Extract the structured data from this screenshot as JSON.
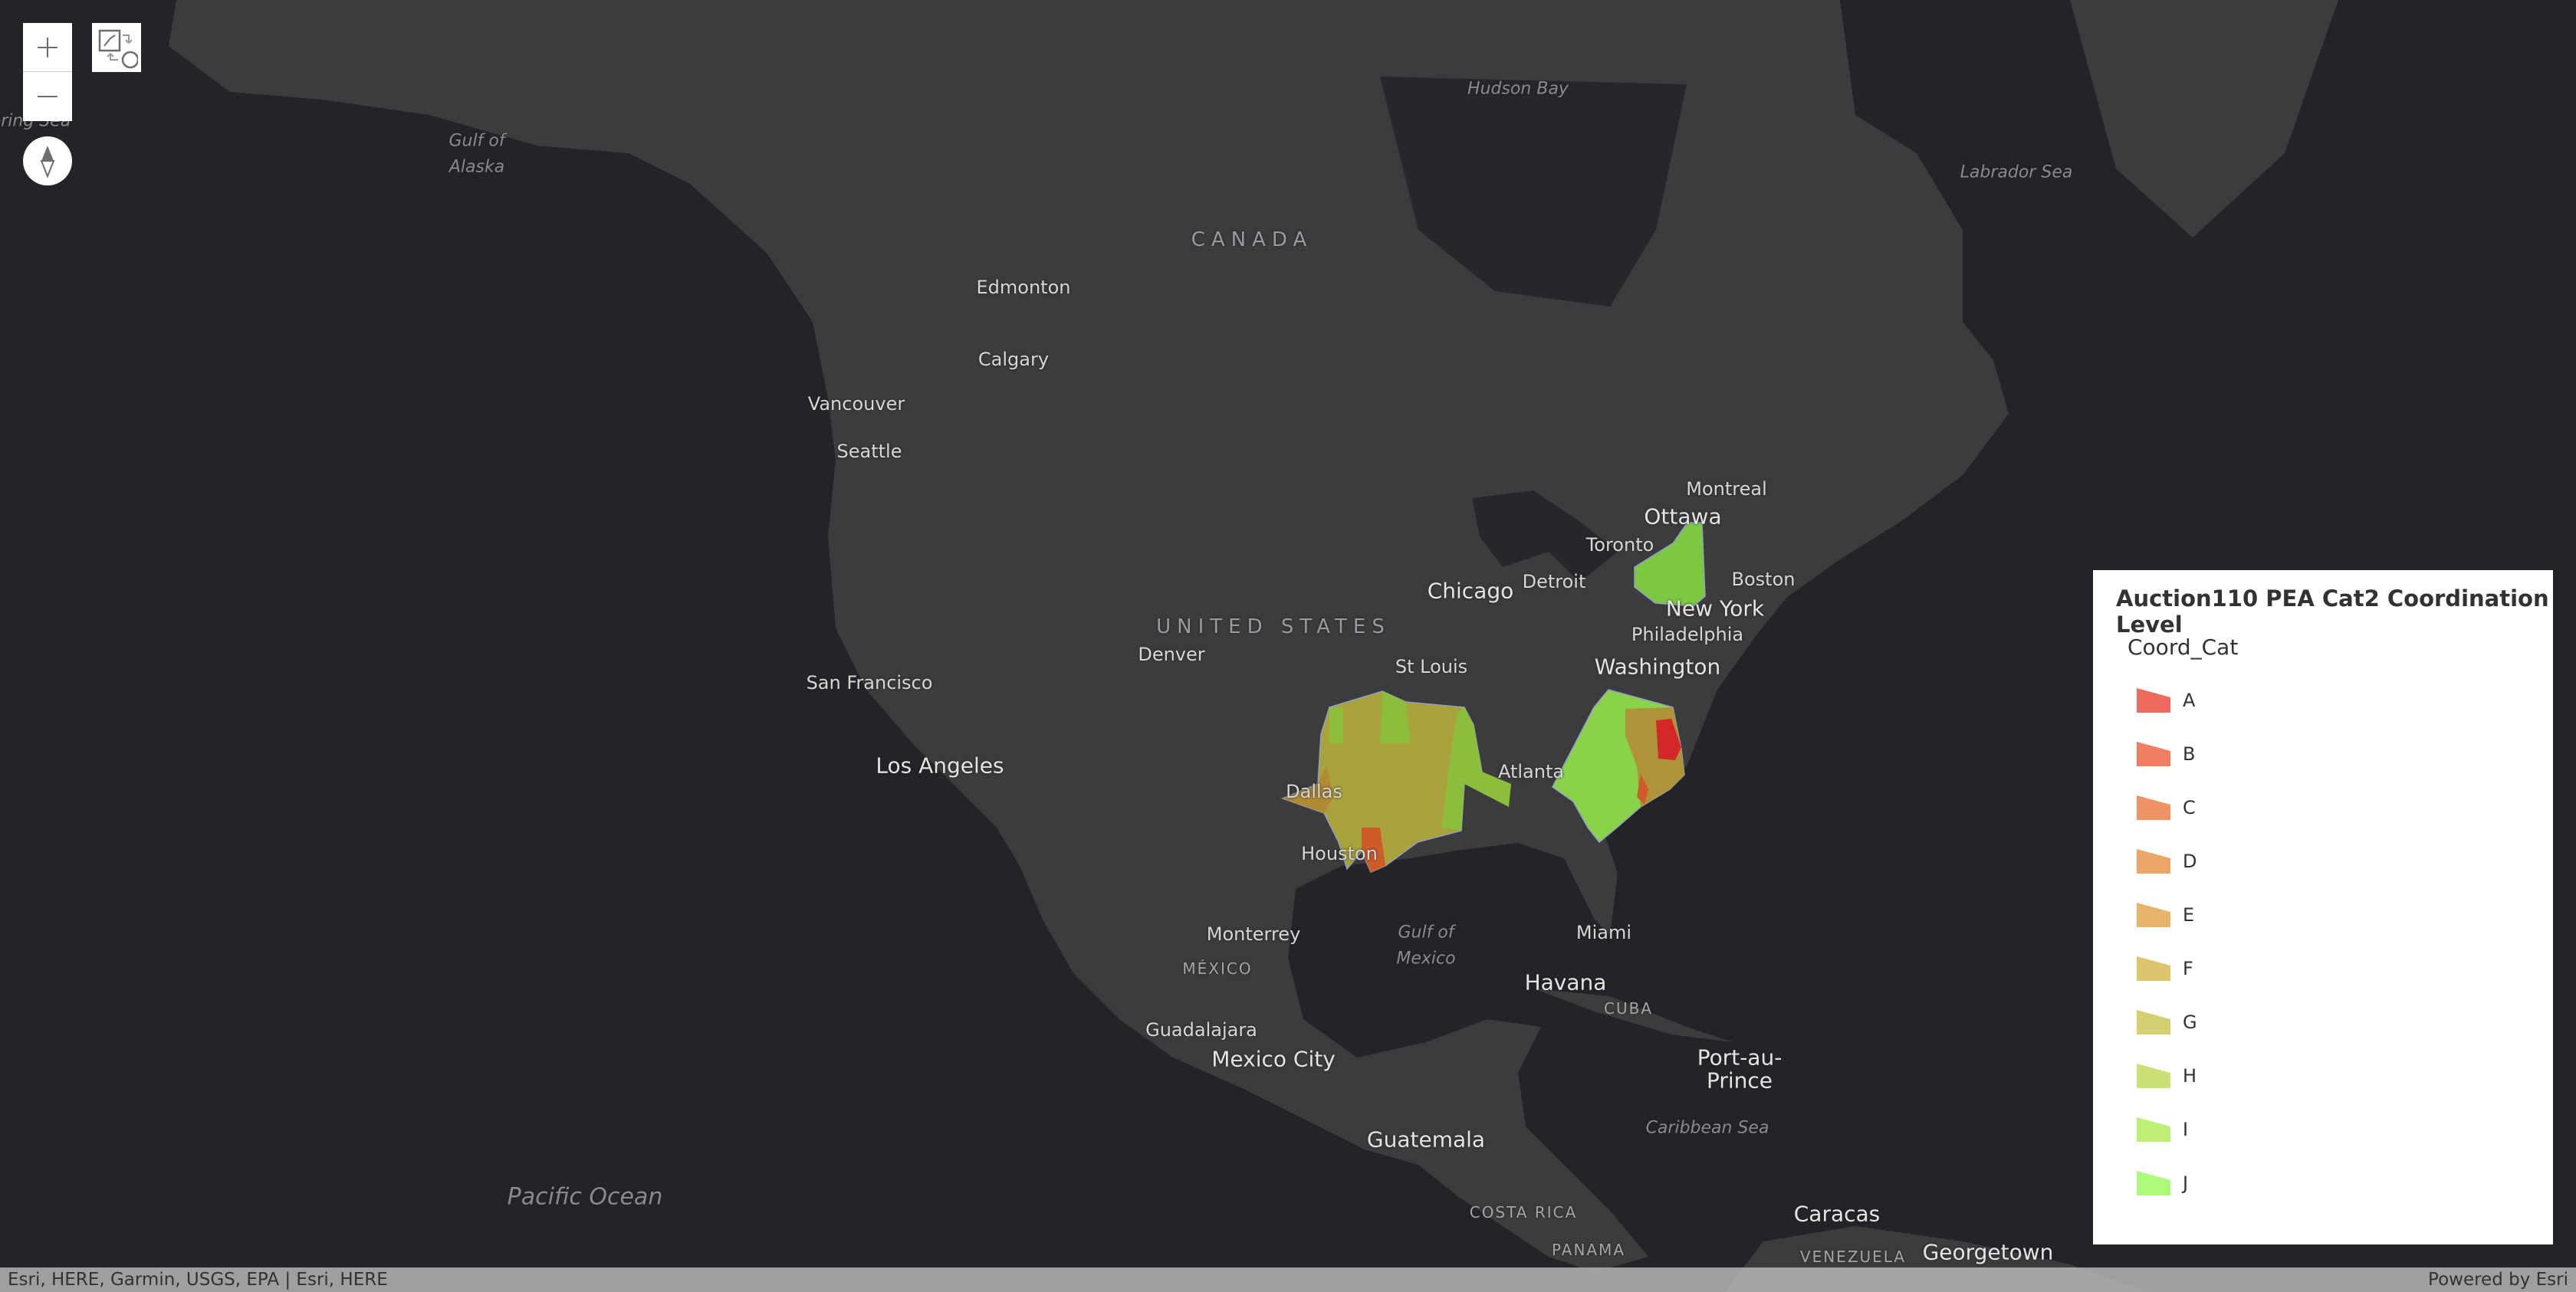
{
  "map": {
    "labels": {
      "hudson_bay": "Hudson Bay",
      "labrador_sea": "Labrador Sea",
      "gulf_of_alaska_1": "Gulf of",
      "gulf_of_alaska_2": "Alaska",
      "bering_sea": "ering Sea",
      "canada": "CANADA",
      "edmonton": "Edmonton",
      "calgary": "Calgary",
      "vancouver": "Vancouver",
      "seattle": "Seattle",
      "ottawa": "Ottawa",
      "montreal": "Montreal",
      "toronto": "Toronto",
      "detroit": "Detroit",
      "chicago": "Chicago",
      "boston": "Boston",
      "new_york": "New York",
      "philadelphia": "Philadelphia",
      "united_states": "UNITED STATES",
      "denver": "Denver",
      "washington": "Washington",
      "st_louis": "St Louis",
      "san_francisco": "San Francisco",
      "los_angeles": "Los Angeles",
      "atlanta": "Atlanta",
      "dallas": "Dallas",
      "houston": "Houston",
      "monterrey": "Monterrey",
      "gulf_of_mexico_1": "Gulf of",
      "gulf_of_mexico_2": "Mexico",
      "miami": "Miami",
      "mexico": "MÉXICO",
      "havana": "Havana",
      "cuba": "CUBA",
      "guadalajara": "Guadalajara",
      "mexico_city": "Mexico City",
      "port_au_prince_1": "Port-au-",
      "port_au_prince_2": "Prince",
      "guatemala": "Guatemala",
      "caribbean_sea": "Caribbean Sea",
      "pacific_ocean": "Pacific Ocean",
      "costa_rica": "COSTA RICA",
      "caracas": "Caracas",
      "panama": "PANAMA",
      "venezuela": "VENEZUELA",
      "georgetown": "Georgetown"
    },
    "colors": {
      "ocean": "#232428",
      "land": "#3c3c3f",
      "lakes": "#26272b"
    }
  },
  "controls": {
    "zoom_in": "+",
    "zoom_out": "−"
  },
  "legend": {
    "title": "Auction110 PEA Cat2 Coordination Level",
    "field": "Coord_Cat",
    "items": [
      {
        "label": "A",
        "color": "#ee6a5e"
      },
      {
        "label": "B",
        "color": "#f07f62"
      },
      {
        "label": "C",
        "color": "#ef9365"
      },
      {
        "label": "D",
        "color": "#eba569"
      },
      {
        "label": "E",
        "color": "#e6b56b"
      },
      {
        "label": "F",
        "color": "#dfc46e"
      },
      {
        "label": "G",
        "color": "#d4d072"
      },
      {
        "label": "H",
        "color": "#c9e174"
      },
      {
        "label": "I",
        "color": "#bdee76"
      },
      {
        "label": "J",
        "color": "#adfb7a"
      }
    ]
  },
  "attribution": {
    "left": "Esri, HERE, Garmin, USGS, EPA | Esri, HERE",
    "right": "Powered by Esri"
  }
}
